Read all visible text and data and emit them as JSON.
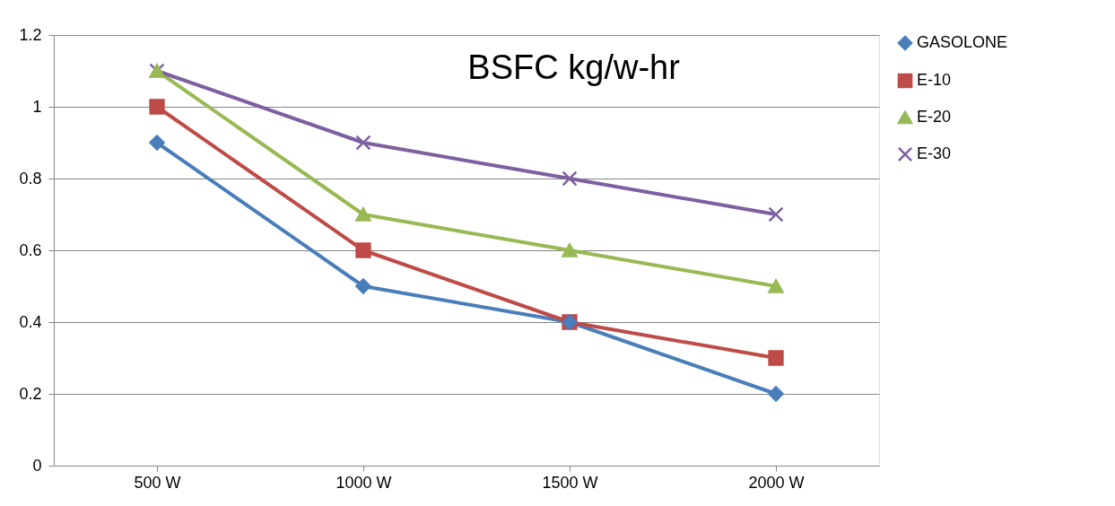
{
  "chart_data": {
    "type": "line",
    "title": "BSFC kg/w-hr",
    "categories": [
      "500 W",
      "1000 W",
      "1500 W",
      "2000 W"
    ],
    "ylim": [
      0,
      1.2
    ],
    "yticks": [
      0,
      0.2,
      0.4,
      0.6,
      0.8,
      1,
      1.2
    ],
    "grid": "y",
    "legend": "right",
    "line_style": "solid",
    "series": [
      {
        "name": "GASOLONE",
        "color": "#4a7ebb",
        "marker": "diamond",
        "values": [
          0.9,
          0.5,
          0.4,
          0.2
        ]
      },
      {
        "name": "E-10",
        "color": "#be4b48",
        "marker": "square",
        "values": [
          1.0,
          0.6,
          0.4,
          0.3
        ]
      },
      {
        "name": "E-20",
        "color": "#98b954",
        "marker": "triangle",
        "values": [
          1.1,
          0.7,
          0.6,
          0.5
        ]
      },
      {
        "name": "E-30",
        "color": "#7d60a0",
        "marker": "cross",
        "values": [
          1.1,
          0.9,
          0.8,
          0.7
        ]
      }
    ]
  }
}
